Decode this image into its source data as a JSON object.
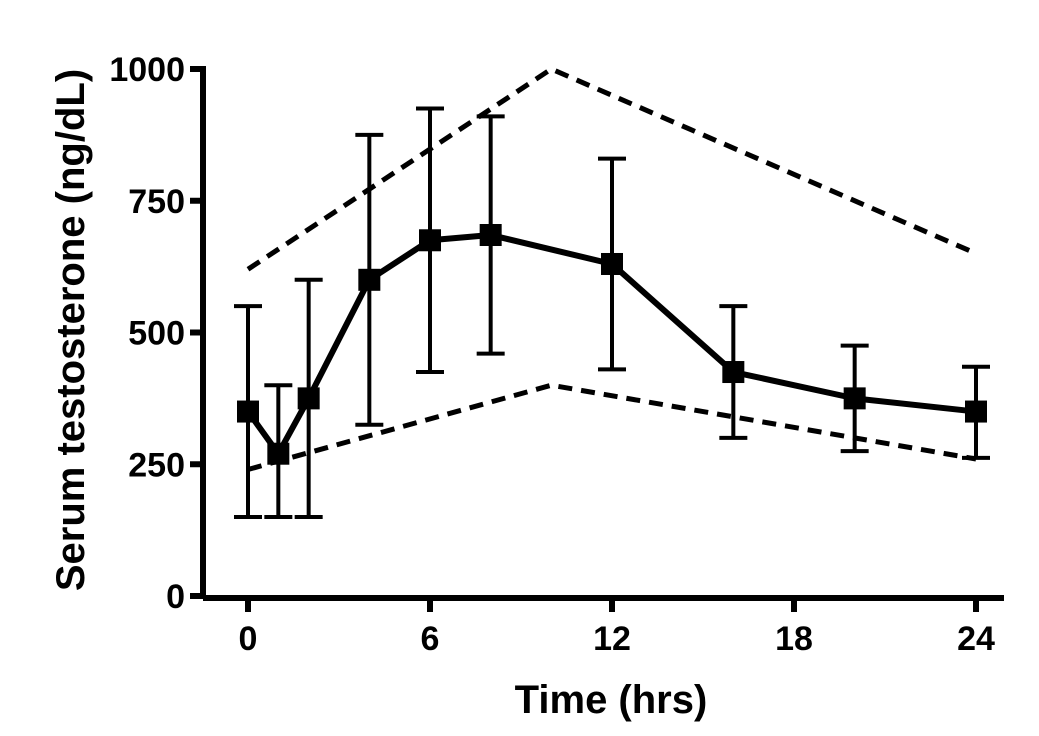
{
  "chart_data": {
    "type": "line",
    "title": "",
    "xlabel": "Time (hrs)",
    "ylabel": "Serum testosterone (ng/dL)",
    "xlim": [
      -1.5,
      25
    ],
    "ylim": [
      0,
      1000
    ],
    "xticks": [
      0,
      6,
      12,
      18,
      24
    ],
    "yticks": [
      0,
      250,
      500,
      750,
      1000
    ],
    "grid": false,
    "series": [
      {
        "style": "solid",
        "marker": "square",
        "x": [
          0,
          1,
          2,
          4,
          6,
          8,
          12,
          16,
          20,
          24
        ],
        "y": [
          350,
          270,
          375,
          600,
          675,
          685,
          630,
          425,
          375,
          350
        ],
        "err_low": [
          150,
          150,
          150,
          325,
          425,
          460,
          430,
          300,
          275,
          262
        ],
        "err_high": [
          550,
          400,
          600,
          875,
          925,
          910,
          830,
          550,
          475,
          435
        ]
      },
      {
        "style": "dashed",
        "x": [
          0,
          10,
          24
        ],
        "y": [
          620,
          1000,
          650
        ]
      },
      {
        "style": "dashed",
        "x": [
          0,
          10,
          24
        ],
        "y": [
          240,
          400,
          260
        ]
      }
    ]
  }
}
